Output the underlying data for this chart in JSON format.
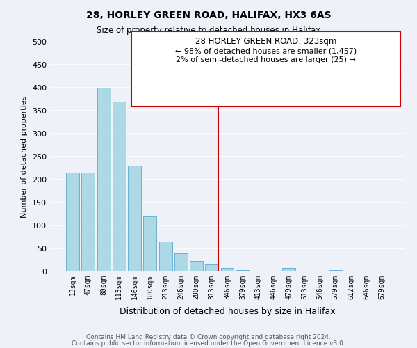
{
  "title": "28, HORLEY GREEN ROAD, HALIFAX, HX3 6AS",
  "subtitle": "Size of property relative to detached houses in Halifax",
  "xlabel": "Distribution of detached houses by size in Halifax",
  "ylabel": "Number of detached properties",
  "bar_color": "#add8e6",
  "bar_edge_color": "#6ab0d4",
  "x_labels": [
    "13sqm",
    "47sqm",
    "80sqm",
    "113sqm",
    "146sqm",
    "180sqm",
    "213sqm",
    "246sqm",
    "280sqm",
    "313sqm",
    "346sqm",
    "379sqm",
    "413sqm",
    "446sqm",
    "479sqm",
    "513sqm",
    "546sqm",
    "579sqm",
    "612sqm",
    "646sqm",
    "679sqm"
  ],
  "bar_heights": [
    215,
    215,
    400,
    370,
    230,
    120,
    65,
    40,
    22,
    15,
    8,
    3,
    0,
    0,
    8,
    0,
    0,
    3,
    0,
    0,
    2
  ],
  "ylim": [
    0,
    500
  ],
  "yticks": [
    0,
    50,
    100,
    150,
    200,
    250,
    300,
    350,
    400,
    450,
    500
  ],
  "vline_x": 9.425,
  "vline_color": "#cc0000",
  "annotation_title": "28 HORLEY GREEN ROAD: 323sqm",
  "annotation_line1": "← 98% of detached houses are smaller (1,457)",
  "annotation_line2": "2% of semi-detached houses are larger (25) →",
  "annotation_box_color": "#ffffff",
  "annotation_box_edge": "#cc0000",
  "footer_line1": "Contains HM Land Registry data © Crown copyright and database right 2024.",
  "footer_line2": "Contains public sector information licensed under the Open Government Licence v3.0.",
  "background_color": "#eef2f8",
  "grid_color": "#ffffff"
}
